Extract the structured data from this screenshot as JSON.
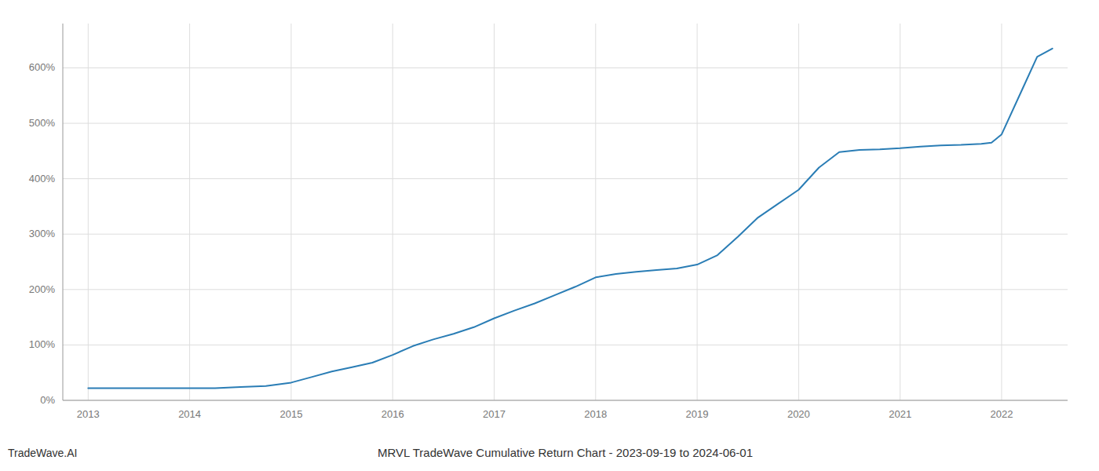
{
  "chart_data": {
    "type": "line",
    "title": "MRVL TradeWave Cumulative Return Chart - 2023-09-19 to 2024-06-01",
    "annotations": [
      "TradeWave.AI"
    ],
    "x": [
      2013.0,
      2013.25,
      2013.5,
      2013.75,
      2014.0,
      2014.1,
      2014.25,
      2014.5,
      2014.75,
      2015.0,
      2015.2,
      2015.4,
      2015.6,
      2015.8,
      2016.0,
      2016.2,
      2016.4,
      2016.6,
      2016.8,
      2017.0,
      2017.2,
      2017.4,
      2017.6,
      2017.8,
      2018.0,
      2018.2,
      2018.4,
      2018.6,
      2018.8,
      2019.0,
      2019.2,
      2019.4,
      2019.6,
      2019.8,
      2020.0,
      2020.2,
      2020.4,
      2020.6,
      2020.8,
      2021.0,
      2021.2,
      2021.4,
      2021.6,
      2021.8,
      2021.9,
      2022.0,
      2022.2,
      2022.35,
      2022.5
    ],
    "values": [
      22,
      22,
      22,
      22,
      22,
      22,
      22,
      24,
      26,
      32,
      42,
      52,
      60,
      68,
      82,
      98,
      110,
      120,
      132,
      148,
      162,
      175,
      190,
      205,
      222,
      228,
      232,
      235,
      238,
      245,
      262,
      295,
      330,
      355,
      380,
      420,
      448,
      452,
      453,
      455,
      458,
      460,
      461,
      463,
      465,
      480,
      560,
      620,
      635
    ],
    "color": "#2a7db5",
    "xlim": [
      2012.75,
      2022.65
    ],
    "xticks": [
      2013,
      2014,
      2015,
      2016,
      2017,
      2018,
      2019,
      2020,
      2021,
      2022
    ],
    "ylim": [
      0,
      680
    ],
    "yticks": [
      {
        "value": 0,
        "label": "0%"
      },
      {
        "value": 100,
        "label": "100%"
      },
      {
        "value": 200,
        "label": "200%"
      },
      {
        "value": 300,
        "label": "300%"
      },
      {
        "value": 400,
        "label": "400%"
      },
      {
        "value": 500,
        "label": "500%"
      },
      {
        "value": 600,
        "label": "600%"
      }
    ],
    "grid": true
  }
}
